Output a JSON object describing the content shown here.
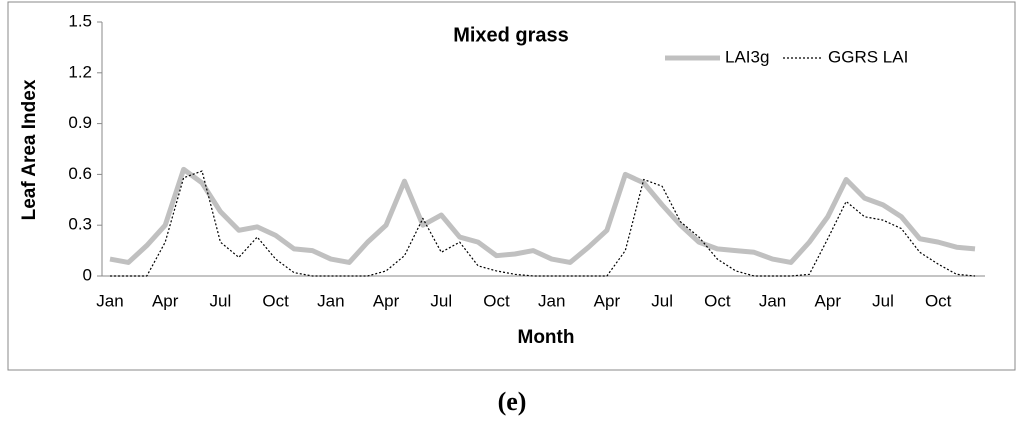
{
  "chart_data": {
    "type": "line",
    "title": "Mixed grass",
    "xlabel": "Month",
    "ylabel": "Leaf Area Index",
    "categories": [
      "Jan",
      null,
      null,
      "Apr",
      null,
      null,
      "Jul",
      null,
      null,
      "Oct",
      null,
      null,
      "Jan",
      null,
      null,
      "Apr",
      null,
      null,
      "Jul",
      null,
      null,
      "Oct",
      null,
      null,
      "Jan",
      null,
      null,
      "Apr",
      null,
      null,
      "Jul",
      null,
      null,
      "Oct",
      null,
      null,
      "Jan",
      null,
      null,
      "Apr",
      null,
      null,
      "Jul",
      null,
      null,
      "Oct",
      null,
      null
    ],
    "series": [
      {
        "name": "LAI3g",
        "color": "#c0c0c0",
        "values": [
          0.1,
          0.08,
          0.18,
          0.3,
          0.63,
          0.55,
          0.38,
          0.27,
          0.29,
          0.24,
          0.16,
          0.15,
          0.1,
          0.08,
          0.2,
          0.3,
          0.56,
          0.3,
          0.36,
          0.23,
          0.2,
          0.12,
          0.13,
          0.15,
          0.1,
          0.08,
          0.17,
          0.27,
          0.6,
          0.55,
          0.42,
          0.3,
          0.2,
          0.16,
          0.15,
          0.14,
          0.1,
          0.08,
          0.2,
          0.35,
          0.57,
          0.46,
          0.42,
          0.35,
          0.22,
          0.2,
          0.17,
          0.16
        ]
      },
      {
        "name": "GGRS LAI",
        "color": "#000000",
        "values": [
          0,
          0,
          0,
          0.2,
          0.58,
          0.62,
          0.2,
          0.11,
          0.23,
          0.1,
          0.02,
          0,
          0,
          0,
          0,
          0.03,
          0.12,
          0.34,
          0.14,
          0.2,
          0.06,
          0.03,
          0.01,
          0,
          0,
          0,
          0,
          0,
          0.15,
          0.57,
          0.53,
          0.32,
          0.23,
          0.1,
          0.03,
          0,
          0,
          0,
          0.01,
          0.22,
          0.44,
          0.35,
          0.33,
          0.28,
          0.14,
          0.07,
          0.01,
          0
        ]
      }
    ],
    "ylim": [
      0,
      1.5
    ],
    "yticks": [
      0,
      0.3,
      0.6,
      0.9,
      1.2,
      1.5
    ],
    "grid": false,
    "legend": "top-right"
  },
  "caption": "(e)"
}
